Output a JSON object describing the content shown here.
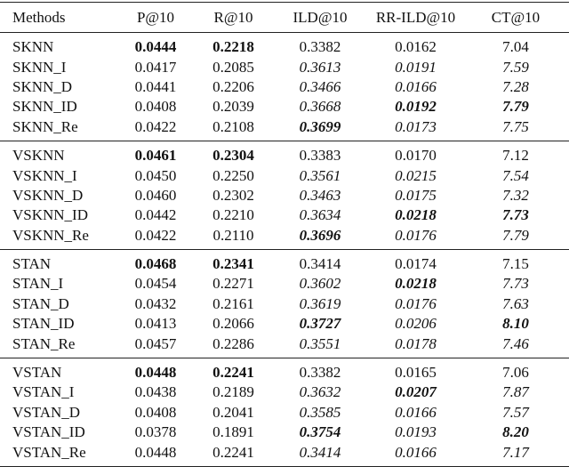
{
  "table": {
    "header": [
      "Methods",
      "P@10",
      "R@10",
      "ILD@10",
      "RR-ILD@10",
      "CT@10"
    ],
    "groups": [
      [
        [
          "SKNN",
          "0.0444",
          "0.2218",
          "0.3382",
          "0.0162",
          "7.04"
        ],
        [
          "SKNN_I",
          "0.0417",
          "0.2085",
          "0.3613",
          "0.0191",
          "7.59"
        ],
        [
          "SKNN_D",
          "0.0441",
          "0.2206",
          "0.3466",
          "0.0166",
          "7.28"
        ],
        [
          "SKNN_ID",
          "0.0408",
          "0.2039",
          "0.3668",
          "0.0192",
          "7.79"
        ],
        [
          "SKNN_Re",
          "0.0422",
          "0.2108",
          "0.3699",
          "0.0173",
          "7.75"
        ]
      ],
      [
        [
          "VSKNN",
          "0.0461",
          "0.2304",
          "0.3383",
          "0.0170",
          "7.12"
        ],
        [
          "VSKNN_I",
          "0.0450",
          "0.2250",
          "0.3561",
          "0.0215",
          "7.54"
        ],
        [
          "VSKNN_D",
          "0.0460",
          "0.2302",
          "0.3463",
          "0.0175",
          "7.32"
        ],
        [
          "VSKNN_ID",
          "0.0442",
          "0.2210",
          "0.3634",
          "0.0218",
          "7.73"
        ],
        [
          "VSKNN_Re",
          "0.0422",
          "0.2110",
          "0.3696",
          "0.0176",
          "7.79"
        ]
      ],
      [
        [
          "STAN",
          "0.0468",
          "0.2341",
          "0.3414",
          "0.0174",
          "7.15"
        ],
        [
          "STAN_I",
          "0.0454",
          "0.2271",
          "0.3602",
          "0.0218",
          "7.73"
        ],
        [
          "STAN_D",
          "0.0432",
          "0.2161",
          "0.3619",
          "0.0176",
          "7.63"
        ],
        [
          "STAN_ID",
          "0.0413",
          "0.2066",
          "0.3727",
          "0.0206",
          "8.10"
        ],
        [
          "STAN_Re",
          "0.0457",
          "0.2286",
          "0.3551",
          "0.0178",
          "7.46"
        ]
      ],
      [
        [
          "VSTAN",
          "0.0448",
          "0.2241",
          "0.3382",
          "0.0165",
          "7.06"
        ],
        [
          "VSTAN_I",
          "0.0438",
          "0.2189",
          "0.3632",
          "0.0207",
          "7.87"
        ],
        [
          "VSTAN_D",
          "0.0408",
          "0.2041",
          "0.3585",
          "0.0166",
          "7.57"
        ],
        [
          "VSTAN_ID",
          "0.0378",
          "0.1891",
          "0.3754",
          "0.0193",
          "8.20"
        ],
        [
          "VSTAN_Re",
          "0.0448",
          "0.2241",
          "0.3414",
          "0.0166",
          "7.17"
        ]
      ]
    ]
  }
}
